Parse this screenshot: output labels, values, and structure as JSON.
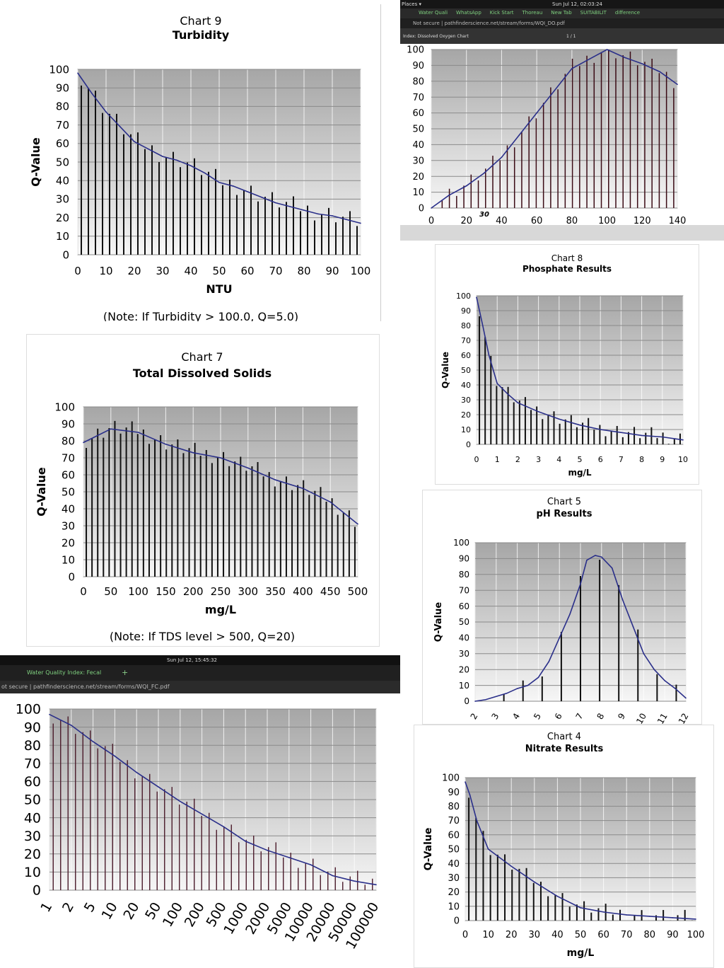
{
  "charts": {
    "turbidity": {
      "chart_data": {
        "type": "line",
        "number_label": "Chart 9",
        "title": "Turbidity",
        "xlabel": "NTU",
        "ylabel": "Q-Value",
        "xlim": [
          0,
          100
        ],
        "ylim": [
          0,
          100
        ],
        "xticks": [
          "0",
          "10",
          "20",
          "30",
          "40",
          "50",
          "60",
          "70",
          "80",
          "90",
          "100"
        ],
        "yticks": [
          "0",
          "10",
          "20",
          "30",
          "40",
          "50",
          "60",
          "70",
          "80",
          "90",
          "100"
        ],
        "note": "(Note:  If Turbidity > 100.0, Q=5.0)",
        "series": [
          {
            "name": "Q-Value",
            "x": [
              0,
              5,
              10,
              15,
              20,
              25,
              30,
              35,
              40,
              45,
              50,
              55,
              60,
              65,
              70,
              75,
              80,
              85,
              90,
              95,
              100
            ],
            "values": [
              98,
              87,
              77,
              69,
              61,
              57,
              53,
              51,
              48,
              44,
              39,
              37,
              34,
              31,
              28,
              26,
              24,
              22,
              21,
              19,
              17
            ]
          }
        ]
      }
    },
    "dissolved_oxygen": {
      "browser": {
        "menu_label": "Places ▾",
        "clock": "Sun Jul 12, 02:03:24",
        "tabs": [
          "Water Quali",
          "WhatsApp",
          "Kick Start",
          "Thoreau",
          "New Tab",
          "SUITABILIT",
          "difference"
        ],
        "address": "Not secure | pathfinderscience.net/stream/forms/WQI_DO.pdf",
        "pdf_title": "Index: Dissolved Oxygen Chart",
        "page_indicator": "1 / 1",
        "annotation": "30"
      },
      "chart_data": {
        "type": "line",
        "title": "",
        "xlabel": "",
        "ylabel": "",
        "xlim": [
          0,
          140
        ],
        "ylim": [
          0,
          100
        ],
        "xticks": [
          "0",
          "20",
          "40",
          "60",
          "80",
          "100",
          "120",
          "140"
        ],
        "yticks": [
          "0",
          "10",
          "20",
          "30",
          "40",
          "50",
          "60",
          "70",
          "80",
          "90",
          "100"
        ],
        "series": [
          {
            "name": "Q-Value",
            "x": [
              0,
              10,
              20,
              30,
              40,
              50,
              60,
              70,
              80,
              85,
              90,
              100,
              110,
              120,
              130,
              140
            ],
            "values": [
              0,
              8,
              14,
              22,
              32,
              46,
              60,
              74,
              88,
              91,
              94,
              100,
              95,
              91,
              86,
              78
            ]
          }
        ]
      }
    },
    "phosphate": {
      "chart_data": {
        "type": "line",
        "number_label": "Chart 8",
        "title": "Phosphate Results",
        "xlabel": "mg/L",
        "ylabel": "Q-Value",
        "xlim": [
          0,
          10
        ],
        "ylim": [
          0,
          100
        ],
        "xticks": [
          "0",
          "1",
          "2",
          "3",
          "4",
          "5",
          "6",
          "7",
          "8",
          "9",
          "10"
        ],
        "yticks": [
          "0",
          "10",
          "20",
          "30",
          "40",
          "50",
          "60",
          "70",
          "80",
          "90",
          "100"
        ],
        "series": [
          {
            "name": "Q-Value",
            "x": [
              0,
              0.3,
              0.6,
              1,
              1.5,
              2,
              3,
              4,
              5,
              6,
              7,
              8,
              9,
              10
            ],
            "values": [
              99,
              80,
              60,
              41,
              34,
              28,
              22,
              17,
              13,
              10,
              8,
              6,
              5,
              3
            ]
          }
        ]
      }
    },
    "tds": {
      "chart_data": {
        "type": "line",
        "number_label": "Chart 7",
        "title": "Total Dissolved Solids",
        "xlabel": "mg/L",
        "ylabel": "Q-Value",
        "xlim": [
          0,
          500
        ],
        "ylim": [
          0,
          100
        ],
        "xticks": [
          "0",
          "50",
          "100",
          "150",
          "200",
          "250",
          "300",
          "350",
          "400",
          "450",
          "500"
        ],
        "yticks": [
          "0",
          "10",
          "20",
          "30",
          "40",
          "50",
          "60",
          "70",
          "80",
          "90",
          "100"
        ],
        "note": "(Note: If TDS level > 500, Q=20)",
        "series": [
          {
            "name": "Q-Value",
            "x": [
              0,
              50,
              100,
              150,
              200,
              250,
              300,
              350,
              400,
              450,
              500
            ],
            "values": [
              79,
              87,
              85,
              78,
              73,
              70,
              64,
              57,
              52,
              44,
              31
            ]
          }
        ]
      }
    },
    "ph": {
      "chart_data": {
        "type": "line",
        "number_label": "Chart 5",
        "title": "pH Results",
        "xlabel": "",
        "ylabel": "Q-Value",
        "xlim": [
          2,
          12
        ],
        "ylim": [
          0,
          100
        ],
        "xticks": [
          "2",
          "3",
          "4",
          "5",
          "6",
          "7",
          "8",
          "9",
          "10",
          "11",
          "12"
        ],
        "yticks": [
          "0",
          "10",
          "20",
          "30",
          "40",
          "50",
          "60",
          "70",
          "80",
          "90",
          "100"
        ],
        "series": [
          {
            "name": "Q-Value",
            "x": [
              2,
              2.5,
              3,
              3.5,
              4,
              4.5,
              5,
              5.5,
              6,
              6.5,
              7,
              7.3,
              7.7,
              8,
              8.5,
              9,
              9.5,
              10,
              10.5,
              11,
              11.5,
              12
            ],
            "values": [
              0,
              1,
              3,
              5,
              8,
              10,
              15,
              25,
              40,
              55,
              74,
              89,
              92,
              91,
              84,
              64,
              47,
              30,
              20,
              13,
              8,
              2
            ]
          }
        ]
      }
    },
    "fecal": {
      "browser": {
        "clock": "Sun Jul 12, 15:45:32",
        "tabs": [
          "Water Quality Index: Fecal"
        ],
        "address": "ot secure | pathfinderscience.net/stream/forms/WQI_FC.pdf",
        "new_tab_symbol": "+"
      },
      "chart_data": {
        "type": "line",
        "title": "",
        "xlabel": "",
        "ylabel": "",
        "x_scale": "log",
        "ylim": [
          0,
          100
        ],
        "xticks": [
          "1",
          "2",
          "5",
          "10",
          "20",
          "50",
          "100",
          "200",
          "500",
          "1000",
          "2000",
          "5000",
          "10000",
          "20000",
          "50000",
          "100000"
        ],
        "yticks": [
          "0",
          "10",
          "20",
          "30",
          "40",
          "50",
          "60",
          "70",
          "80",
          "90",
          "100"
        ],
        "series": [
          {
            "name": "Q-Value",
            "x": [
              1,
              2,
              5,
              10,
              20,
              50,
              100,
              200,
              500,
              1000,
              2000,
              5000,
              10000,
              20000,
              50000,
              100000
            ],
            "values": [
              97,
              91,
              82,
              74,
              65,
              57,
              49,
              42,
              35,
              27,
              22,
              18,
              14,
              8,
              5,
              3
            ]
          }
        ]
      }
    },
    "nitrate": {
      "chart_data": {
        "type": "line",
        "number_label": "Chart 4",
        "title": "Nitrate Results",
        "xlabel": "mg/L",
        "ylabel": "Q-Value",
        "xlim": [
          0,
          100
        ],
        "ylim": [
          0,
          100
        ],
        "xticks": [
          "0",
          "10",
          "20",
          "30",
          "40",
          "50",
          "60",
          "70",
          "80",
          "90",
          "100"
        ],
        "yticks": [
          "0",
          "10",
          "20",
          "30",
          "40",
          "50",
          "60",
          "70",
          "80",
          "90",
          "100"
        ],
        "series": [
          {
            "name": "Q-Value",
            "x": [
              0,
              2,
              5,
              10,
              15,
              20,
              30,
              40,
              50,
              60,
              70,
              80,
              90,
              100
            ],
            "values": [
              97,
              88,
              70,
              50,
              44,
              38,
              27,
              17,
              9,
              6,
              4,
              3,
              2,
              1
            ]
          }
        ]
      }
    }
  }
}
